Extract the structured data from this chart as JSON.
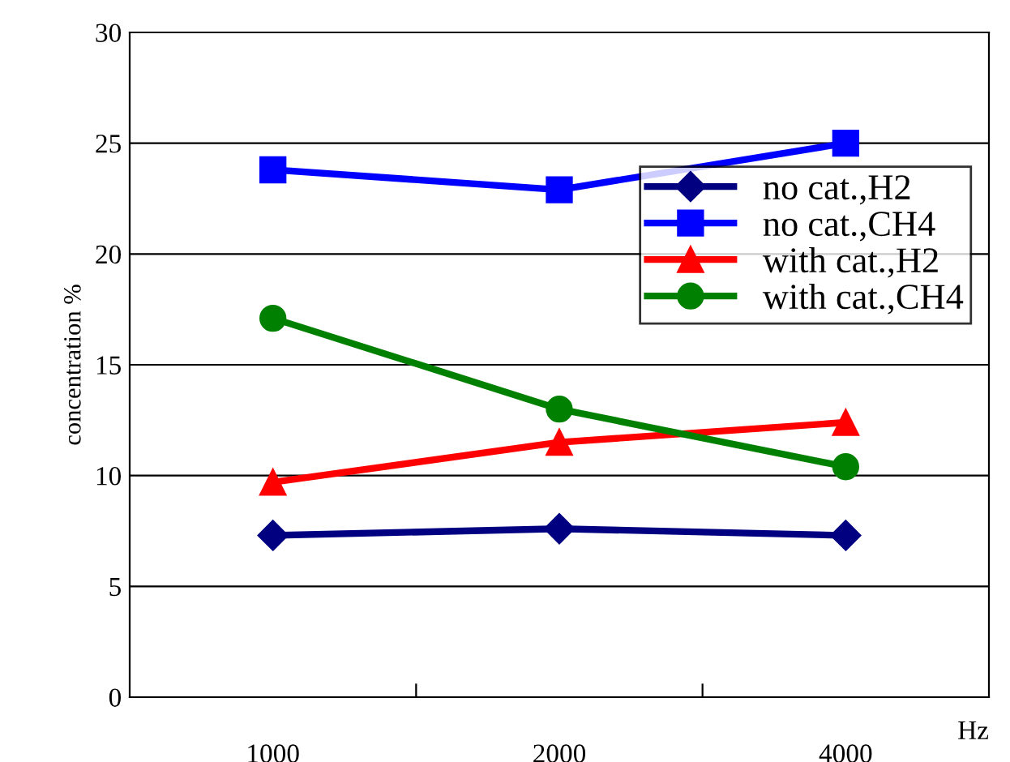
{
  "chart_data": {
    "type": "line",
    "ylabel": "concentration %",
    "xlabel": "Hz",
    "categories": [
      "1000",
      "2000",
      "4000"
    ],
    "series": [
      {
        "name": "no cat.,H2",
        "color": "#000080",
        "marker": "diamond",
        "values": [
          7.3,
          7.6,
          7.3
        ]
      },
      {
        "name": "no cat.,CH4",
        "color": "#0000ff",
        "marker": "square",
        "values": [
          23.8,
          22.9,
          25.0
        ]
      },
      {
        "name": "with cat.,H2",
        "color": "#ff0000",
        "marker": "triangle",
        "values": [
          9.7,
          11.5,
          12.4
        ]
      },
      {
        "name": "with cat.,CH4",
        "color": "#008000",
        "marker": "circle",
        "values": [
          17.1,
          13.0,
          10.4
        ]
      }
    ],
    "ylim": [
      0,
      30
    ],
    "yticks": [
      0,
      5,
      10,
      15,
      20,
      25,
      30
    ],
    "grid": "y",
    "legend": "right",
    "line_style": "solid"
  }
}
